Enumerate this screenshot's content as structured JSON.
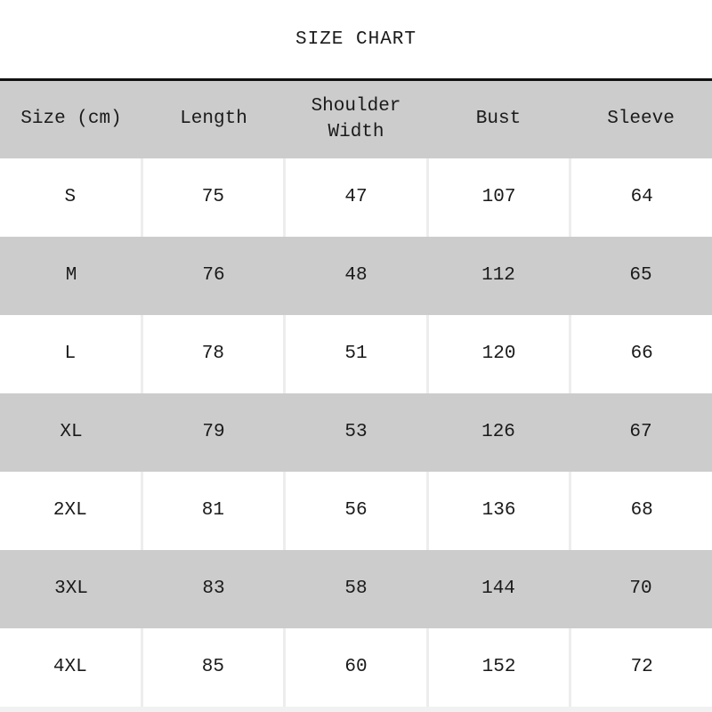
{
  "title": "SIZE CHART",
  "chart_data": {
    "type": "table",
    "title": "SIZE CHART",
    "unit": "cm",
    "columns": [
      "Size (cm)",
      "Length",
      "Shoulder Width",
      "Bust",
      "Sleeve"
    ],
    "rows": [
      [
        "S",
        75,
        47,
        107,
        64
      ],
      [
        "M",
        76,
        48,
        112,
        65
      ],
      [
        "L",
        78,
        51,
        120,
        66
      ],
      [
        "XL",
        79,
        53,
        126,
        67
      ],
      [
        "2XL",
        81,
        56,
        136,
        68
      ],
      [
        "3XL",
        83,
        58,
        144,
        70
      ],
      [
        "4XL",
        85,
        60,
        152,
        72
      ]
    ],
    "layout_hints": {
      "alternating_rows": "white/gray starting white",
      "header_bg": "gray",
      "columns_equal_width": true
    }
  },
  "colors": {
    "header_bg": "#cccccc",
    "alt_row_bg": "#cccccc",
    "row_bg": "#ffffff",
    "separator": "#ededed",
    "top_rule": "#111111",
    "text": "#1a1a1a",
    "bottom_strip": "#f1f1f1"
  }
}
